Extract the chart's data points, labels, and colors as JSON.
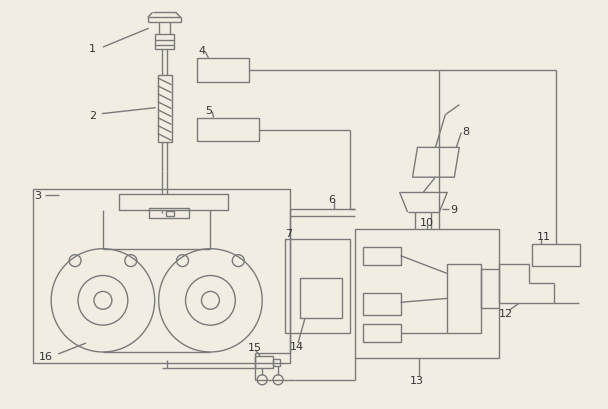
{
  "bg_color": "#f2ede3",
  "line_color": "#7a7a7a",
  "line_width": 1.0,
  "label_color": "#333333",
  "label_fontsize": 8,
  "fig_width": 6.08,
  "fig_height": 4.1
}
